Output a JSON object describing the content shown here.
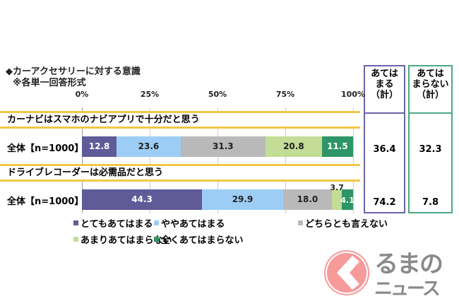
{
  "chart_data": {
    "type": "bar",
    "orientation": "horizontal-stacked-100",
    "title": "◆カーアクセサリーに対する意識",
    "subtitle": "※各単一回答形式",
    "x_ticks": [
      "0%",
      "25%",
      "50%",
      "75%",
      "100%"
    ],
    "xlim": [
      0,
      100
    ],
    "series": [
      {
        "name": "とてもあてはまる",
        "color": "#5f5b99"
      },
      {
        "name": "ややあてはまる",
        "color": "#9dcdf5"
      },
      {
        "name": "どちらとも言えない",
        "color": "#b9b9b9"
      },
      {
        "name": "あまりあてはまらない",
        "color": "#c3dc96"
      },
      {
        "name": "全くあてはまらない",
        "color": "#2e9566"
      }
    ],
    "rows": [
      {
        "question": "カーナビはスマホのナビアプリで十分だと思う",
        "label": "全体【n=1000】",
        "values": [
          12.8,
          23.6,
          31.3,
          20.8,
          11.5
        ],
        "labels": [
          "12.8",
          "23.6",
          "31.3",
          "20.8",
          "11.5"
        ],
        "agree_total": "36.4",
        "disagree_total": "32.3"
      },
      {
        "question": "ドライブレコーダーは必需品だと思う",
        "label": "全体【n=1000】",
        "values": [
          44.3,
          29.9,
          18.0,
          3.7,
          4.1
        ],
        "labels": [
          "44.3",
          "29.9",
          "18.0",
          "3.7",
          "4.1"
        ],
        "agree_total": "74.2",
        "disagree_total": "7.8"
      }
    ],
    "summary_headers": {
      "agree": [
        "あては",
        "まる",
        "（計）"
      ],
      "disagree": [
        "あては",
        "まらない",
        "（計）"
      ]
    },
    "legend_position": "bottom"
  },
  "logo": {
    "text1": "るまの",
    "text2": "ニュース"
  }
}
